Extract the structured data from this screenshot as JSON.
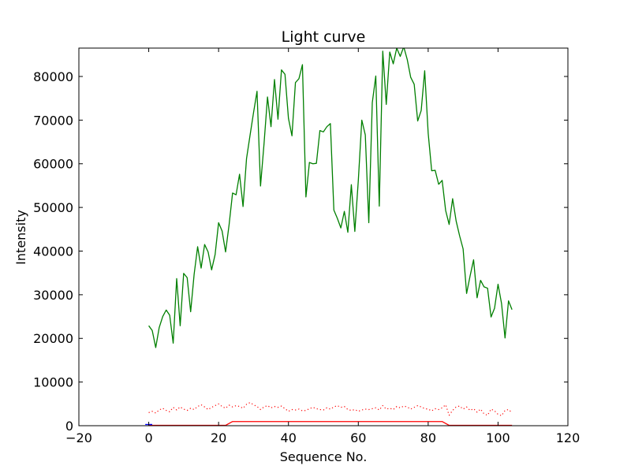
{
  "chart_data": {
    "type": "line",
    "title": "Light curve",
    "xlabel": "Sequence No.",
    "ylabel": "Intensity",
    "xlim": [
      -20,
      120
    ],
    "ylim": [
      0,
      86500
    ],
    "xticks": [
      -20,
      0,
      20,
      40,
      60,
      80,
      100,
      120
    ],
    "yticks": [
      0,
      10000,
      20000,
      30000,
      40000,
      50000,
      60000,
      70000,
      80000
    ],
    "xtick_labels": [
      "−20",
      "0",
      "20",
      "40",
      "60",
      "80",
      "100",
      "120"
    ],
    "ytick_labels": [
      "0",
      "10000",
      "20000",
      "30000",
      "40000",
      "50000",
      "60000",
      "70000",
      "80000"
    ],
    "grid": false,
    "series": [
      {
        "color": "#007f00",
        "style": "solid",
        "x": [
          0,
          1,
          2,
          3,
          4,
          5,
          6,
          7,
          8,
          9,
          10,
          11,
          12,
          13,
          14,
          15,
          16,
          17,
          18,
          19,
          20,
          21,
          22,
          23,
          24,
          25,
          26,
          27,
          28,
          29,
          30,
          31,
          32,
          33,
          34,
          35,
          36,
          37,
          38,
          39,
          40,
          41,
          42,
          43,
          44,
          45,
          46,
          47,
          48,
          49,
          50,
          51,
          52,
          53,
          54,
          55,
          56,
          57,
          58,
          59,
          60,
          61,
          62,
          63,
          64,
          65,
          66,
          67,
          68,
          69,
          70,
          71,
          72,
          73,
          74,
          75,
          76,
          77,
          78,
          79,
          80,
          81,
          82,
          83,
          84,
          85,
          86,
          87,
          88,
          89,
          90,
          91,
          92,
          93,
          94,
          95,
          96,
          97,
          98,
          99,
          100,
          101,
          102,
          103,
          104
        ],
        "y": [
          22900,
          21800,
          17900,
          22500,
          25000,
          26500,
          25300,
          18900,
          33700,
          22900,
          34900,
          33900,
          26100,
          34700,
          41000,
          36100,
          41500,
          39800,
          35700,
          39200,
          46500,
          44600,
          39800,
          46000,
          53300,
          52900,
          57600,
          50200,
          61200,
          66500,
          71700,
          76600,
          54900,
          64500,
          75300,
          68500,
          79300,
          70200,
          81500,
          80500,
          70400,
          66400,
          78600,
          79500,
          82700,
          52400,
          60300,
          60000,
          60100,
          67600,
          67300,
          68500,
          69200,
          49400,
          47500,
          45300,
          49100,
          44300,
          55200,
          44500,
          56200,
          70000,
          66600,
          46500,
          74000,
          80100,
          50300,
          85800,
          73600,
          85600,
          82900,
          86500,
          84600,
          86800,
          83900,
          79800,
          78200,
          69800,
          72200,
          81300,
          67000,
          58400,
          58500,
          55300,
          56200,
          49300,
          46100,
          52000,
          46900,
          43500,
          40500,
          30300,
          34300,
          38000,
          29300,
          33300,
          31800,
          31500,
          24900,
          26900,
          32400,
          28000,
          20100,
          28600,
          26600
        ]
      },
      {
        "color": "#ff0000",
        "style": "dotted",
        "x": [
          0,
          1,
          2,
          3,
          4,
          5,
          6,
          7,
          8,
          9,
          10,
          11,
          12,
          13,
          14,
          15,
          16,
          17,
          18,
          19,
          20,
          21,
          22,
          23,
          24,
          25,
          26,
          27,
          28,
          29,
          30,
          31,
          32,
          33,
          34,
          35,
          36,
          37,
          38,
          39,
          40,
          41,
          42,
          43,
          44,
          45,
          46,
          47,
          48,
          49,
          50,
          51,
          52,
          53,
          54,
          55,
          56,
          57,
          58,
          59,
          60,
          61,
          62,
          63,
          64,
          65,
          66,
          67,
          68,
          69,
          70,
          71,
          72,
          73,
          74,
          75,
          76,
          77,
          78,
          79,
          80,
          81,
          82,
          83,
          84,
          85,
          86,
          87,
          88,
          89,
          90,
          91,
          92,
          93,
          94,
          95,
          96,
          97,
          98,
          99,
          100,
          101,
          102,
          103,
          104
        ],
        "y": [
          3000,
          3300,
          2900,
          3600,
          4000,
          3500,
          3200,
          4200,
          3600,
          4300,
          3800,
          3500,
          4000,
          3700,
          4400,
          4800,
          4300,
          3700,
          4200,
          4600,
          5000,
          4400,
          4000,
          4700,
          4300,
          4600,
          4400,
          4000,
          4900,
          5300,
          4800,
          4400,
          3700,
          4300,
          4600,
          4100,
          4400,
          4200,
          4500,
          3900,
          3300,
          3700,
          3600,
          3800,
          3400,
          3500,
          3900,
          4200,
          3900,
          3700,
          3600,
          4100,
          3800,
          4300,
          4600,
          4200,
          4400,
          3700,
          3500,
          3700,
          3300,
          3600,
          3800,
          3700,
          3900,
          4100,
          3600,
          4600,
          3800,
          4000,
          3700,
          4400,
          4100,
          4500,
          4300,
          3800,
          4200,
          4600,
          4300,
          3900,
          3800,
          3400,
          3900,
          3700,
          4100,
          4800,
          2400,
          3500,
          4300,
          4500,
          3800,
          4300,
          3500,
          3900,
          3100,
          3800,
          2700,
          2400,
          3800,
          3400,
          2600,
          2300,
          3500,
          3700,
          3000
        ]
      },
      {
        "color": "#ff0000",
        "style": "solid",
        "x": [
          0,
          22,
          24,
          84,
          86,
          104
        ],
        "y": [
          80,
          80,
          950,
          950,
          80,
          80
        ]
      },
      {
        "color": "#0000ff",
        "style": "solid",
        "x": [
          -1,
          1
        ],
        "y": [
          280,
          280
        ]
      }
    ]
  }
}
